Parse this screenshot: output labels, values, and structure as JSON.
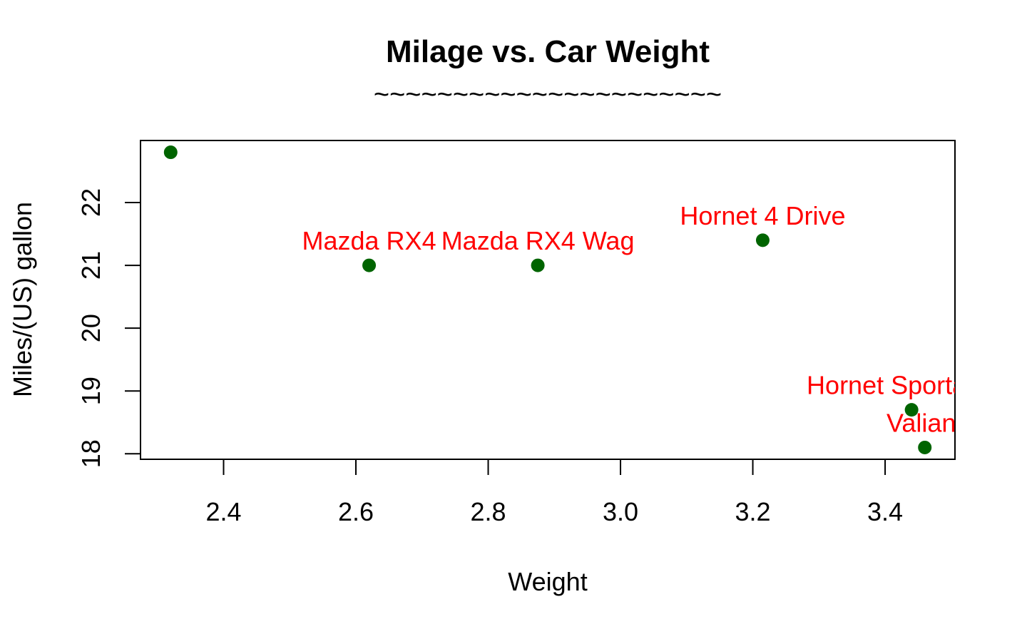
{
  "chart_data": {
    "type": "scatter",
    "title": "Milage vs. Car Weight",
    "subtitle": "~~~~~~~~~~~~~~~~~~~~~~",
    "xlabel": "Weight",
    "ylabel": "Miles/(US) gallon",
    "xlim": [
      2.32,
      3.46
    ],
    "ylim": [
      18.1,
      22.8
    ],
    "x_ticks": [
      "2.4",
      "2.6",
      "2.8",
      "3.0",
      "3.2",
      "3.4"
    ],
    "y_ticks": [
      "18",
      "19",
      "20",
      "21",
      "22"
    ],
    "grid": false,
    "point_color": "#006400",
    "label_color": "#ff0000",
    "points": [
      {
        "x": 2.32,
        "y": 22.8,
        "label": ""
      },
      {
        "x": 2.62,
        "y": 21.0,
        "label": "Mazda RX4"
      },
      {
        "x": 2.875,
        "y": 21.0,
        "label": "Mazda RX4 Wag"
      },
      {
        "x": 3.215,
        "y": 21.4,
        "label": "Hornet 4 Drive"
      },
      {
        "x": 3.44,
        "y": 18.7,
        "label": "Hornet Sportabout"
      },
      {
        "x": 3.46,
        "y": 18.1,
        "label": "Valiant"
      }
    ]
  }
}
